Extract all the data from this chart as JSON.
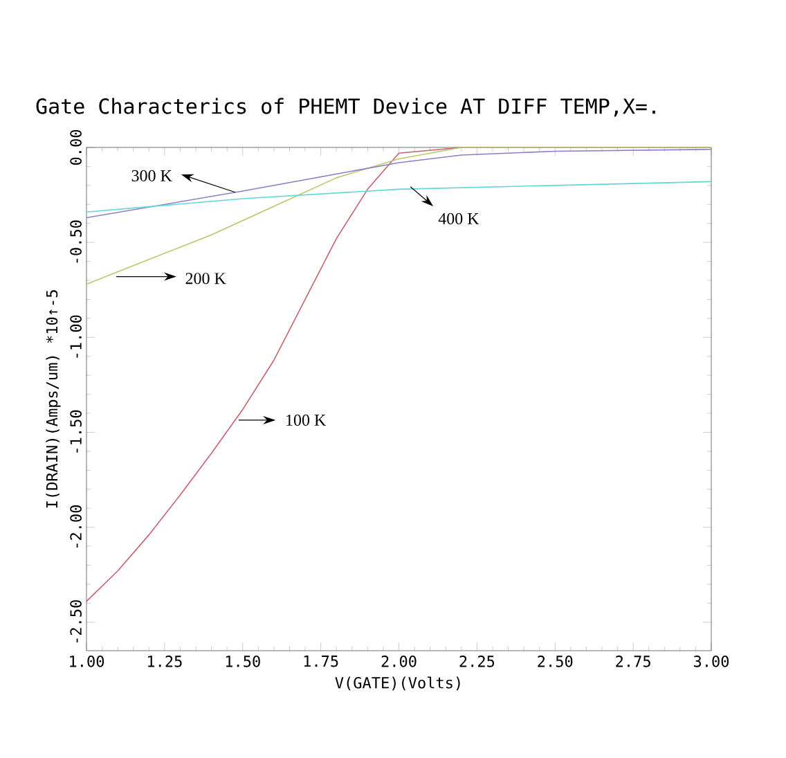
{
  "chart_data": {
    "type": "line",
    "title": "Gate Characterics of PHEMT Device AT DIFF TEMP,X=.",
    "xlabel": "V(GATE)(Volts)",
    "ylabel": "I(DRAIN)(Amps/um) *10↑-5",
    "xlim": [
      1.0,
      3.0
    ],
    "ylim": [
      -2.65,
      0.0
    ],
    "xticks": [
      {
        "value": 1.0,
        "label": "1.00"
      },
      {
        "value": 1.25,
        "label": "1.25"
      },
      {
        "value": 1.5,
        "label": "1.50"
      },
      {
        "value": 1.75,
        "label": "1.75"
      },
      {
        "value": 2.0,
        "label": "2.00"
      },
      {
        "value": 2.25,
        "label": "2.25"
      },
      {
        "value": 2.5,
        "label": "2.50"
      },
      {
        "value": 2.75,
        "label": "2.75"
      },
      {
        "value": 3.0,
        "label": "3.00"
      }
    ],
    "yticks": [
      {
        "value": -2.5,
        "label": "-2.50"
      },
      {
        "value": -2.0,
        "label": "-2.00"
      },
      {
        "value": -1.5,
        "label": "-1.50"
      },
      {
        "value": -1.0,
        "label": "-1.00"
      },
      {
        "value": -0.5,
        "label": "-0.50"
      },
      {
        "value": 0.0,
        "label": "0.00"
      }
    ],
    "grid": false,
    "legend": false,
    "marker": "none",
    "line_style": "solid",
    "series": [
      {
        "name": "100 K",
        "color": "#c8606e",
        "x": [
          1.0,
          1.1,
          1.2,
          1.3,
          1.4,
          1.5,
          1.6,
          1.7,
          1.8,
          1.9,
          2.0,
          2.2,
          3.0
        ],
        "values": [
          -2.39,
          -2.23,
          -2.04,
          -1.83,
          -1.61,
          -1.38,
          -1.12,
          -0.8,
          -0.48,
          -0.22,
          -0.03,
          0.0,
          0.0
        ]
      },
      {
        "name": "200 K",
        "color": "#b8c86a",
        "x": [
          1.0,
          1.2,
          1.4,
          1.6,
          1.8,
          2.0,
          2.2,
          3.0
        ],
        "values": [
          -0.72,
          -0.59,
          -0.46,
          -0.31,
          -0.16,
          -0.06,
          0.0,
          0.0
        ]
      },
      {
        "name": "300 K",
        "color": "#8a7fc8",
        "x": [
          1.0,
          1.5,
          2.0,
          2.2,
          2.5,
          3.0
        ],
        "values": [
          -0.37,
          -0.23,
          -0.08,
          -0.04,
          -0.02,
          -0.01
        ]
      },
      {
        "name": "400 K",
        "color": "#5fd8d8",
        "x": [
          1.0,
          1.5,
          2.0,
          2.5,
          3.0
        ],
        "values": [
          -0.34,
          -0.27,
          -0.22,
          -0.2,
          -0.18
        ]
      }
    ]
  }
}
